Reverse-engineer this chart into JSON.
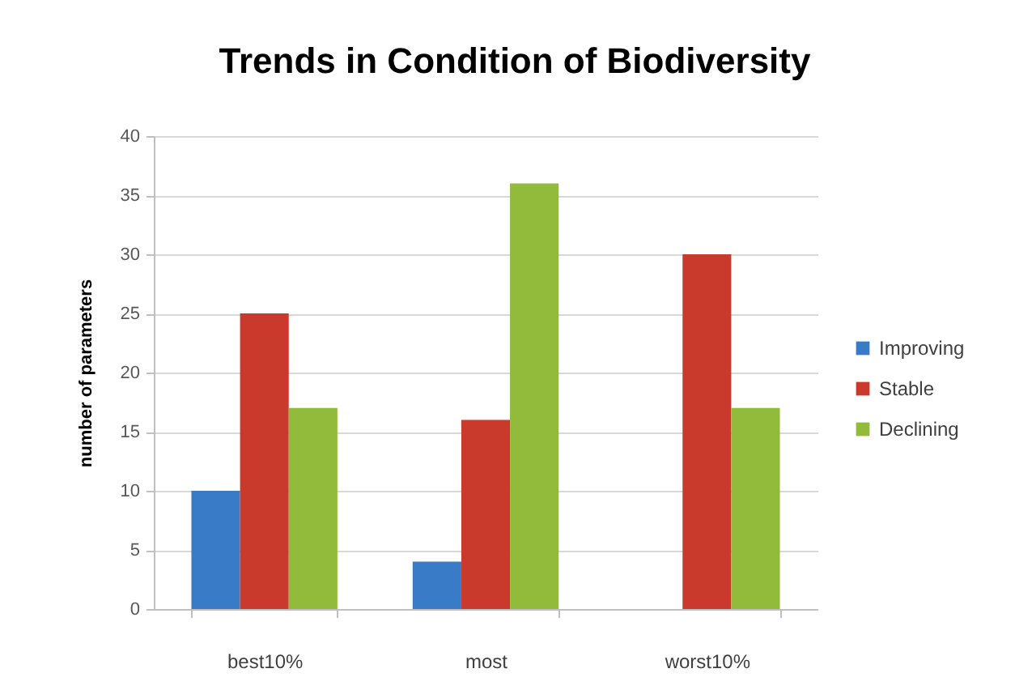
{
  "chart_data": {
    "type": "bar",
    "title": "Trends in Condition of Biodiversity",
    "ylabel": "number of parameters",
    "categories": [
      "best10%",
      "most",
      "worst10%"
    ],
    "series": [
      {
        "name": "Improving",
        "color": "#3a7bc8",
        "values": [
          10,
          4,
          0
        ]
      },
      {
        "name": "Stable",
        "color": "#c9392c",
        "values": [
          25,
          16,
          30
        ]
      },
      {
        "name": "Declining",
        "color": "#93bb3b",
        "values": [
          17,
          36,
          17
        ]
      }
    ],
    "ylim": [
      0,
      40
    ],
    "yticks": [
      0,
      5,
      10,
      15,
      20,
      25,
      30,
      35,
      40
    ],
    "grid": "y",
    "legend": "right"
  }
}
